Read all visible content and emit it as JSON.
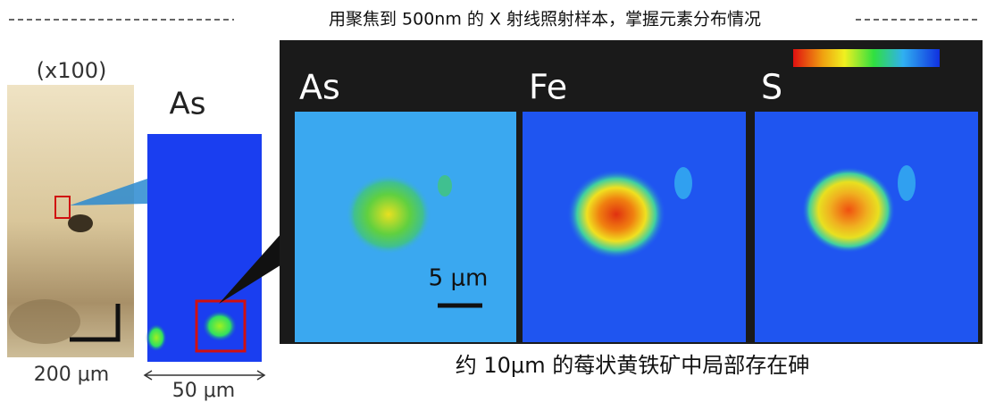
{
  "header": {
    "title": "用聚焦到 500nm 的 X 射线照射样本，掌握元素分布情况"
  },
  "optical_image": {
    "magnification": "(x100)",
    "scale_label": "200 μm"
  },
  "overview_map": {
    "label": "As",
    "scale_label": "50 μm"
  },
  "panels": [
    {
      "label": "As"
    },
    {
      "label": "Fe"
    },
    {
      "label": "S"
    }
  ],
  "panel_scale": {
    "label": "5 μm"
  },
  "caption": "约 10μm 的莓状黄铁矿中局部存在砷"
}
